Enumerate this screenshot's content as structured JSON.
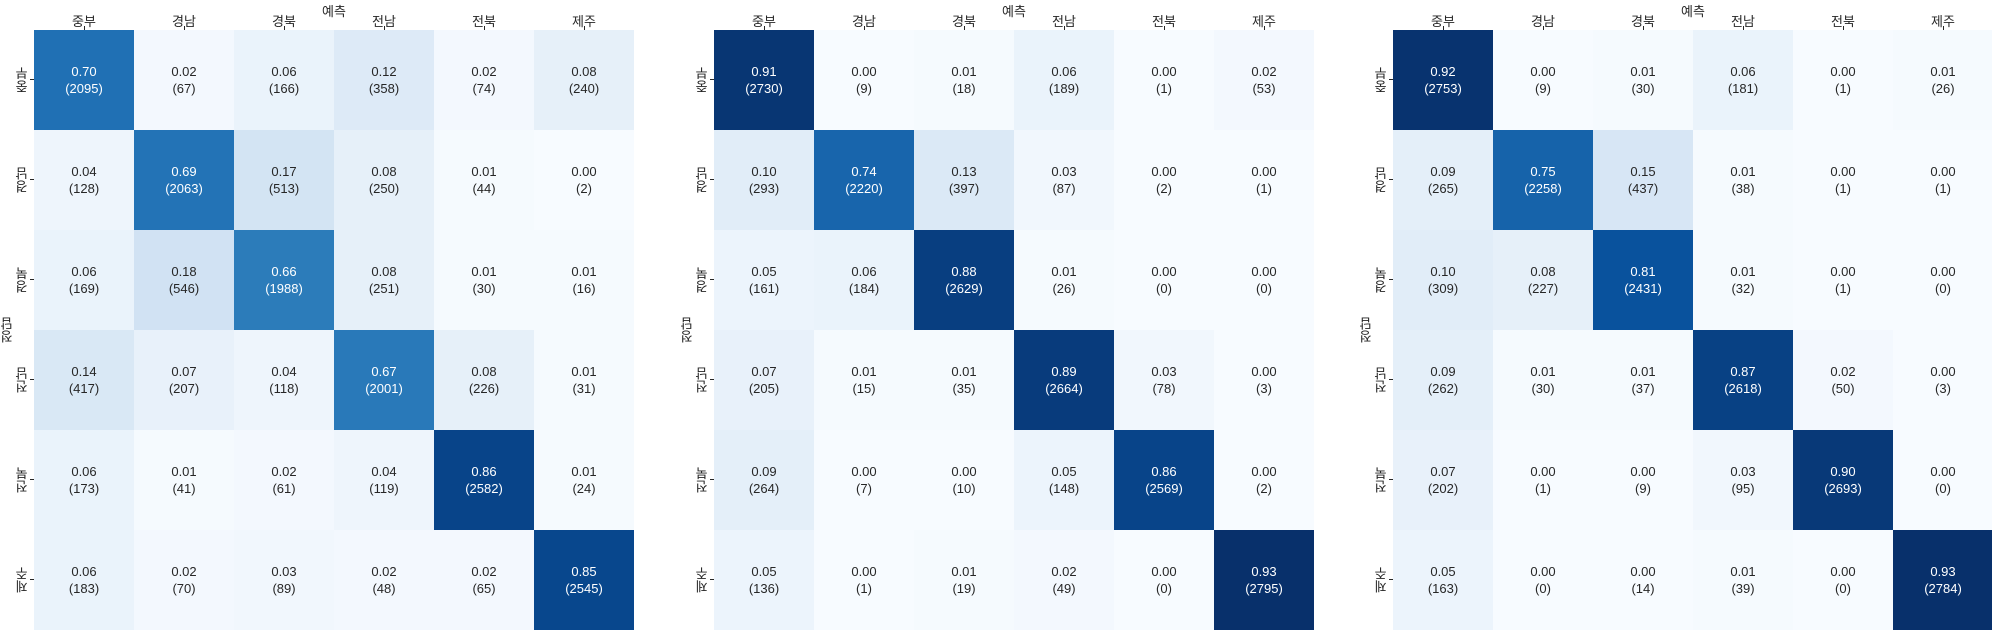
{
  "figure": {
    "description": "three confusion-matrix heatmaps"
  },
  "colors": {
    "background": "#ffffff",
    "dark_text": "#262626",
    "light_text": "#ffffff",
    "blues_colormap": [
      "#f7fbff",
      "#deebf7",
      "#c6dbef",
      "#9ecae1",
      "#6baed6",
      "#4292c6",
      "#2171b5",
      "#08519c",
      "#08306b"
    ]
  },
  "chart_data": [
    {
      "type": "heatmap",
      "title": "예측",
      "ylabel": "정답",
      "xlabel": "",
      "colormap": "Blues",
      "x_labels": [
        "중부",
        "경남",
        "경북",
        "전남",
        "전북",
        "제주"
      ],
      "y_labels": [
        "중부",
        "경남",
        "경북",
        "전남",
        "전북",
        "제주"
      ],
      "proportions": [
        [
          0.7,
          0.02,
          0.06,
          0.12,
          0.02,
          0.08
        ],
        [
          0.04,
          0.69,
          0.17,
          0.08,
          0.01,
          0.0
        ],
        [
          0.06,
          0.18,
          0.66,
          0.08,
          0.01,
          0.01
        ],
        [
          0.14,
          0.07,
          0.04,
          0.67,
          0.08,
          0.01
        ],
        [
          0.06,
          0.01,
          0.02,
          0.04,
          0.86,
          0.01
        ],
        [
          0.06,
          0.02,
          0.03,
          0.02,
          0.02,
          0.85
        ]
      ],
      "counts": [
        [
          2095,
          67,
          166,
          358,
          74,
          240
        ],
        [
          128,
          2063,
          513,
          250,
          44,
          2
        ],
        [
          169,
          546,
          1988,
          251,
          30,
          16
        ],
        [
          417,
          207,
          118,
          2001,
          226,
          31
        ],
        [
          173,
          41,
          61,
          119,
          2582,
          24
        ],
        [
          183,
          70,
          89,
          48,
          65,
          2545
        ]
      ]
    },
    {
      "type": "heatmap",
      "title": "예측",
      "ylabel": "정답",
      "xlabel": "",
      "colormap": "Blues",
      "x_labels": [
        "중부",
        "경남",
        "경북",
        "전남",
        "전북",
        "제주"
      ],
      "y_labels": [
        "중부",
        "경남",
        "경북",
        "전남",
        "전북",
        "제주"
      ],
      "proportions": [
        [
          0.91,
          0.0,
          0.01,
          0.06,
          0.0,
          0.02
        ],
        [
          0.1,
          0.74,
          0.13,
          0.03,
          0.0,
          0.0
        ],
        [
          0.05,
          0.06,
          0.88,
          0.01,
          0.0,
          0.0
        ],
        [
          0.07,
          0.01,
          0.01,
          0.89,
          0.03,
          0.0
        ],
        [
          0.09,
          0.0,
          0.0,
          0.05,
          0.86,
          0.0
        ],
        [
          0.05,
          0.0,
          0.01,
          0.02,
          0.0,
          0.93
        ]
      ],
      "counts": [
        [
          2730,
          9,
          18,
          189,
          1,
          53
        ],
        [
          293,
          2220,
          397,
          87,
          2,
          1
        ],
        [
          161,
          184,
          2629,
          26,
          0,
          0
        ],
        [
          205,
          15,
          35,
          2664,
          78,
          3
        ],
        [
          264,
          7,
          10,
          148,
          2569,
          2
        ],
        [
          136,
          1,
          19,
          49,
          0,
          2795
        ]
      ]
    },
    {
      "type": "heatmap",
      "title": "예측",
      "ylabel": "정답",
      "xlabel": "",
      "colormap": "Blues",
      "x_labels": [
        "중부",
        "경남",
        "경북",
        "전남",
        "전북",
        "제주"
      ],
      "y_labels": [
        "중부",
        "경남",
        "경북",
        "전남",
        "전북",
        "제주"
      ],
      "proportions": [
        [
          0.92,
          0.0,
          0.01,
          0.06,
          0.0,
          0.01
        ],
        [
          0.09,
          0.75,
          0.15,
          0.01,
          0.0,
          0.0
        ],
        [
          0.1,
          0.08,
          0.81,
          0.01,
          0.0,
          0.0
        ],
        [
          0.09,
          0.01,
          0.01,
          0.87,
          0.02,
          0.0
        ],
        [
          0.07,
          0.0,
          0.0,
          0.03,
          0.9,
          0.0
        ],
        [
          0.05,
          0.0,
          0.0,
          0.01,
          0.0,
          0.93
        ]
      ],
      "counts": [
        [
          2753,
          9,
          30,
          181,
          1,
          26
        ],
        [
          265,
          2258,
          437,
          38,
          1,
          1
        ],
        [
          309,
          227,
          2431,
          32,
          1,
          0
        ],
        [
          262,
          30,
          37,
          2618,
          50,
          3
        ],
        [
          202,
          1,
          9,
          95,
          2693,
          0
        ],
        [
          163,
          0,
          14,
          39,
          0,
          2784
        ]
      ]
    }
  ]
}
